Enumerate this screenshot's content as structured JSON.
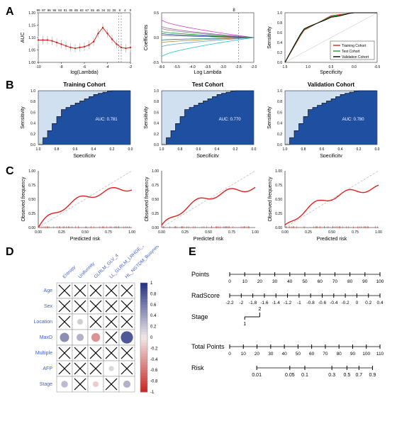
{
  "colors": {
    "red": "#e02020",
    "darkblue": "#1f3a8a",
    "blue_fill": "#1f4fa0",
    "lightblue_bg": "#d0e0f0",
    "green": "#20a020",
    "black": "#000000",
    "white": "#ffffff",
    "gray": "#aaaaaa",
    "magenta": "#d040c0",
    "cyan": "#20c0c0",
    "heat_pos": "#103080",
    "heat_neg": "#a02020",
    "heat_mid": "#f0e8e8"
  },
  "panels": {
    "A": {
      "label": "A",
      "lasso_cv": {
        "xlabel": "log(Lambda)",
        "ylabel": "AUC",
        "top_ticks": [
          "99",
          "97",
          "96",
          "95",
          "93",
          "91",
          "90",
          "85",
          "83",
          "67",
          "55",
          "46",
          "34",
          "32",
          "25",
          "9",
          "4",
          "0"
        ],
        "xlim": [
          -10,
          -2
        ],
        "xticks": [
          -10,
          -8,
          -6,
          -4,
          -2
        ],
        "ylim": [
          1.0,
          1.6
        ],
        "yticks": [
          "1.00",
          "1.05",
          "1.10",
          "1.15",
          "1.20"
        ],
        "line_color": "#e02020",
        "point_color": "#e02020",
        "error_color": "#bbbbbb",
        "curve_y": [
          1.27,
          1.27,
          1.27,
          1.26,
          1.24,
          1.22,
          1.2,
          1.18,
          1.17,
          1.18,
          1.19,
          1.21,
          1.25,
          1.35,
          1.42,
          1.35,
          1.28,
          1.22,
          1.18,
          1.17,
          1.18
        ],
        "vlines_x": [
          -3.0,
          -2.8
        ]
      },
      "coef_path": {
        "xlabel": "Log Lambda",
        "ylabel": "Coefficients",
        "top_label": "8",
        "xlim": [
          -8,
          -2
        ],
        "xticks": [
          "-8.0",
          "-5.5",
          "-4.0",
          "-3.5",
          "-3.0",
          "-2.5",
          "-2.0"
        ],
        "ylim": [
          -0.5,
          0.5
        ],
        "yticks": [
          "-0.5",
          "0.0",
          "0.5"
        ],
        "lines": [
          {
            "color": "#d040c0",
            "y0": 0.35,
            "y1": 0.0
          },
          {
            "color": "#20c0c0",
            "y0": -0.38,
            "y1": 0.0
          },
          {
            "color": "#888888",
            "y0": 0.18,
            "y1": 0.0
          },
          {
            "color": "#20a020",
            "y0": 0.12,
            "y1": 0.0
          },
          {
            "color": "#1f4fa0",
            "y0": 0.08,
            "y1": 0.0
          },
          {
            "color": "#c08020",
            "y0": -0.1,
            "y1": 0.0
          },
          {
            "color": "#60a0c0",
            "y0": -0.18,
            "y1": 0.0
          },
          {
            "color": "#a060a0",
            "y0": 0.22,
            "y1": 0.0
          },
          {
            "color": "#606060",
            "y0": 0.05,
            "y1": 0.0
          },
          {
            "color": "#208080",
            "y0": -0.05,
            "y1": 0.0
          }
        ],
        "vline_x": -3.0
      },
      "roc_overlay": {
        "xlabel": "Specificity",
        "ylabel": "Sensitivity",
        "xlim": [
          1.5,
          -0.5
        ],
        "xticks": [
          "1.5",
          "1.0",
          "0.5",
          "0.0",
          "-0.5"
        ],
        "ylim": [
          0.0,
          1.0
        ],
        "yticks": [
          "0.0",
          "0.2",
          "0.4",
          "0.6",
          "0.8",
          "1.0"
        ],
        "legend": [
          {
            "label": "Training Cohort",
            "color": "#e02020"
          },
          {
            "label": "Test Cohort",
            "color": "#20a020"
          },
          {
            "label": "Validation Cohort",
            "color": "#000000"
          }
        ]
      }
    },
    "B": {
      "label": "B",
      "rocs": [
        {
          "title": "Training Cohort",
          "auc_text": "AUC: 0.781"
        },
        {
          "title": "Test Cohort",
          "auc_text": "AUC: 0.770"
        },
        {
          "title": "Validation Cohort",
          "auc_text": "AUC: 0.780"
        }
      ],
      "common": {
        "xlabel": "Specificity",
        "ylabel": "Sensitivity",
        "xticks": [
          "1.0",
          "0.8",
          "0.6",
          "0.4",
          "0.2",
          "0.0"
        ],
        "yticks": [
          "0.0",
          "0.2",
          "0.4",
          "0.6",
          "0.8",
          "1.0"
        ],
        "fill_color": "#1f4fa0",
        "bg_color": "#d0e0f0",
        "line_color": "#000000",
        "diag_color": "#aaaaaa"
      }
    },
    "C": {
      "label": "C",
      "plots": [
        {
          "ix": 0
        },
        {
          "ix": 1
        },
        {
          "ix": 2
        }
      ],
      "common": {
        "xlabel": "Predicted risk",
        "ylabel": "Observed frequency",
        "xticks": [
          "0.00",
          "0.25",
          "0.50",
          "0.75",
          "1.00"
        ],
        "yticks": [
          "0.00",
          "0.25",
          "0.50",
          "0.75",
          "1.00"
        ],
        "line_color": "#e02020",
        "diag_color": "#888888"
      }
    },
    "D": {
      "label": "D",
      "row_labels": [
        "Age",
        "Sex",
        "Location",
        "MaxD",
        "Multiple",
        "AFP",
        "Stage"
      ],
      "col_labels": [
        "Entropy",
        "Uniformity",
        "GLRLM_GLV_4",
        "LL_GLRLM_LRHGE_2",
        "HL_NGTDM_Busyness"
      ],
      "grid": [
        [
          "x",
          "x",
          "x",
          "x",
          "x"
        ],
        [
          "x",
          "x",
          "x",
          "x",
          "x"
        ],
        [
          "x",
          0.15,
          "x",
          "x",
          "x"
        ],
        [
          0.5,
          0.3,
          -0.45,
          "x",
          0.8
        ],
        [
          "x",
          "x",
          "x",
          "x",
          "x"
        ],
        [
          "x",
          "x",
          "x",
          0.1,
          "x"
        ],
        [
          0.25,
          "x",
          -0.15,
          "x",
          0.3
        ]
      ],
      "scale_ticks": [
        "1",
        "0.8",
        "0.6",
        "0.4",
        "0.2",
        "0",
        "-0.2",
        "-0.4",
        "-0.6",
        "-0.8",
        "-1"
      ],
      "text_color": "#4060d0"
    },
    "E": {
      "label": "E",
      "nomogram": {
        "rows": [
          {
            "name": "Points",
            "ticks": [
              "0",
              "10",
              "20",
              "30",
              "40",
              "50",
              "60",
              "70",
              "80",
              "90",
              "100"
            ],
            "range": [
              0,
              100
            ]
          },
          {
            "name": "RadScore",
            "ticks": [
              "-2.2",
              "-2",
              "-1.8",
              "-1.6",
              "-1.4",
              "-1.2",
              "-1",
              "-0.8",
              "-0.6",
              "-0.4",
              "-0.2",
              "0",
              "0.2",
              "0.4"
            ],
            "range": [
              0,
              100
            ]
          },
          {
            "name": "Stage",
            "ticks": [
              "1",
              "2"
            ],
            "range": [
              10,
              20
            ]
          },
          {
            "name": "Total Points",
            "ticks": [
              "0",
              "10",
              "20",
              "30",
              "40",
              "50",
              "60",
              "70",
              "80",
              "90",
              "100",
              "110"
            ],
            "range": [
              0,
              100
            ]
          },
          {
            "name": "Risk",
            "ticks": [
              "0.01",
              "0.05",
              "0.1",
              "0.3",
              "0.5",
              "0.7",
              "0.9"
            ],
            "range": [
              18,
              95
            ]
          }
        ]
      }
    }
  }
}
